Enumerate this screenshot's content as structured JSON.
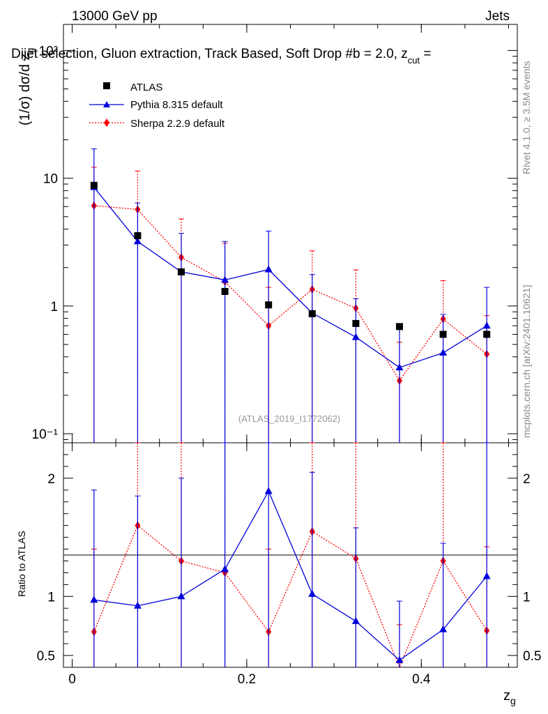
{
  "header": {
    "left": "13000 GeV pp",
    "right": "Jets",
    "title": "Dijet selection, Gluon extraction, Track Based, Soft Drop #b = 2.0, z",
    "title_sub": "cut",
    "title_tail": " =",
    "side_right_top": "Rivet 4.1.0, ≥ 3.5M events",
    "side_right_bottom": "mcplots.cern.ch [arXiv:2401.10621]",
    "watermark": "(ATLAS_2019_I1772062)"
  },
  "colors": {
    "atlas": "#000000",
    "pythia": "#0000dd",
    "sherpa": "#ff0000"
  },
  "chart_data": {
    "type": "scatter",
    "xlabel": "z_g",
    "xlabel_main": "z",
    "xlabel_sub": "g",
    "ylabel_main": "(1/σ) dσ/d z",
    "ylabel_sub": "g",
    "ylabel_ratio": "Ratio to ATLAS",
    "x": [
      0.025,
      0.075,
      0.125,
      0.175,
      0.225,
      0.275,
      0.325,
      0.375,
      0.425,
      0.475
    ],
    "xlim": [
      -0.01,
      0.51
    ],
    "ylim_main": [
      0.085,
      160
    ],
    "ylim_ratio": [
      0.4,
      2.3
    ],
    "x_ticks": [
      "0",
      "0.2",
      "0.4"
    ],
    "x_tick_values": [
      0,
      0.2,
      0.4
    ],
    "y_ticks_main": [
      "10⁻¹",
      "1",
      "10",
      "10²"
    ],
    "y_tick_values_main": [
      0.1,
      1,
      10,
      100
    ],
    "y_ticks_ratio": [
      "0.5",
      "1",
      "2"
    ],
    "y_tick_values_ratio": [
      0.5,
      1,
      2
    ],
    "legend": [
      "ATLAS",
      "Pythia 8.315 default",
      "Sherpa 2.2.9 default"
    ],
    "series": [
      {
        "name": "ATLAS",
        "values": [
          8.8,
          3.55,
          1.85,
          1.3,
          1.02,
          0.87,
          0.73,
          0.69,
          0.6,
          0.6
        ]
      },
      {
        "name": "Pythia 8.315 default",
        "values": [
          8.5,
          3.2,
          1.85,
          1.6,
          1.93,
          0.88,
          0.57,
          0.33,
          0.43,
          0.7
        ],
        "err_up": [
          17,
          6.4,
          3.7,
          3.2,
          3.86,
          1.76,
          1.14,
          0.66,
          0.86,
          1.4
        ],
        "ratio": [
          0.97,
          0.92,
          1.0,
          1.23,
          1.89,
          1.02,
          0.79,
          0.46,
          0.72,
          1.17
        ],
        "ratio_err_up": [
          1.9,
          1.85,
          2.0,
          2.3,
          2.4,
          2.05,
          1.58,
          0.96,
          1.45,
          2.3
        ]
      },
      {
        "name": "Sherpa 2.2.9 default",
        "values": [
          6.1,
          5.7,
          2.4,
          1.55,
          0.7,
          1.35,
          0.96,
          0.26,
          0.79,
          0.42
        ],
        "err_up": [
          12.2,
          11.4,
          4.8,
          3.1,
          1.4,
          2.7,
          1.92,
          0.52,
          1.58,
          0.84
        ],
        "ratio": [
          0.7,
          1.6,
          1.3,
          1.2,
          0.7,
          1.55,
          1.32,
          0.38,
          1.3,
          0.71
        ],
        "ratio_err_up": [
          1.4,
          2.4,
          2.4,
          2.4,
          1.4,
          2.4,
          2.4,
          0.76,
          2.4,
          1.42
        ]
      }
    ]
  }
}
